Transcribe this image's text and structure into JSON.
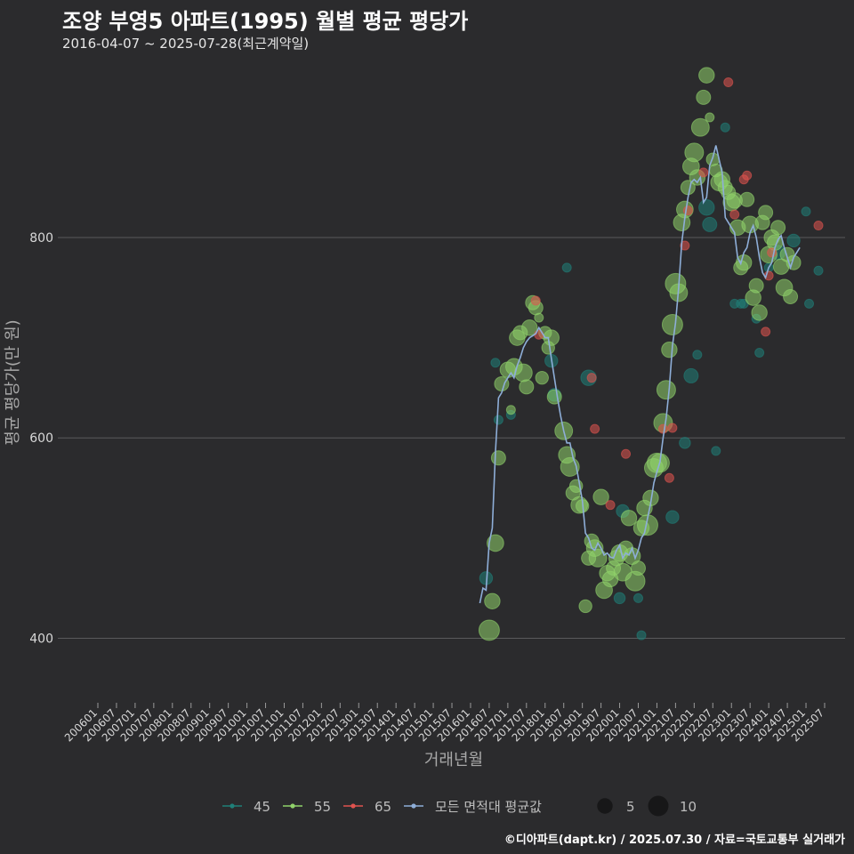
{
  "title": "조양 부영5 아파트(1995) 월별 평균 평당가",
  "subtitle": "2016-04-07 ~ 2025-07-28(최근계약일)",
  "footer": "©디아파트(dapt.kr) / 2025.07.30 / 자료=국토교통부 실거래가",
  "colors": {
    "background": "#2b2b2d",
    "grid": "#5a5a5c",
    "s45": "#1f7f78",
    "s55": "#90d26a",
    "s65": "#e0534f",
    "avg": "#8eaed8"
  },
  "chart_data": {
    "type": "scatter",
    "xlabel": "거래년월",
    "ylabel": "평균 평당가(만 원)",
    "ylim": [
      340,
      975
    ],
    "yticks": [
      400,
      600,
      800
    ],
    "x_range": [
      "2006-01",
      "2025-10"
    ],
    "xticks": [
      "200601",
      "200607",
      "200701",
      "200707",
      "200801",
      "200807",
      "200901",
      "200907",
      "201001",
      "201007",
      "201101",
      "201107",
      "201201",
      "201207",
      "201301",
      "201307",
      "201401",
      "201407",
      "201501",
      "201507",
      "201601",
      "201607",
      "201701",
      "201707",
      "201801",
      "201807",
      "201901",
      "201907",
      "202001",
      "202007",
      "202101",
      "202107",
      "202201",
      "202207",
      "202301",
      "202307",
      "202401",
      "202407",
      "202501",
      "202507"
    ],
    "legend": {
      "position": "bottom",
      "series": [
        {
          "label": "45",
          "color_key": "s45"
        },
        {
          "label": "55",
          "color_key": "s55"
        },
        {
          "label": "65",
          "color_key": "s65"
        },
        {
          "label": "모든 면적대 평균값",
          "color_key": "avg"
        }
      ],
      "sizes": [
        {
          "label": "5",
          "count": 5
        },
        {
          "label": "10",
          "count": 10
        }
      ]
    },
    "series": [
      {
        "name": "45",
        "color_key": "s45",
        "points": [
          [
            "2016-06",
            460,
            3
          ],
          [
            "2016-09",
            675,
            1
          ],
          [
            "2016-10",
            618,
            1
          ],
          [
            "2017-02",
            623,
            1
          ],
          [
            "2018-03",
            677,
            3
          ],
          [
            "2018-04",
            643,
            3
          ],
          [
            "2018-08",
            770,
            1
          ],
          [
            "2019-03",
            660,
            5
          ],
          [
            "2020-01",
            440,
            2
          ],
          [
            "2020-02",
            527,
            3
          ],
          [
            "2020-07",
            440,
            1
          ],
          [
            "2020-08",
            403,
            1
          ],
          [
            "2021-06",
            521,
            3
          ],
          [
            "2021-10",
            595,
            2
          ],
          [
            "2021-12",
            662,
            4
          ],
          [
            "2022-02",
            683,
            1
          ],
          [
            "2022-05",
            830,
            5
          ],
          [
            "2022-06",
            813,
            4
          ],
          [
            "2022-08",
            587,
            1
          ],
          [
            "2022-11",
            910,
            1
          ],
          [
            "2023-02",
            734,
            1
          ],
          [
            "2023-04",
            734,
            1
          ],
          [
            "2023-05",
            734,
            1
          ],
          [
            "2023-09",
            719,
            1
          ],
          [
            "2023-10",
            685,
            1
          ],
          [
            "2024-01",
            770,
            1
          ],
          [
            "2024-04",
            785,
            4
          ],
          [
            "2024-09",
            797,
            3
          ],
          [
            "2025-01",
            826,
            1
          ],
          [
            "2025-02",
            734,
            1
          ],
          [
            "2025-05",
            767,
            1
          ]
        ]
      },
      {
        "name": "55",
        "color_key": "s55",
        "points": [
          [
            "2016-07",
            408,
            10
          ],
          [
            "2016-08",
            437,
            5
          ],
          [
            "2016-09",
            495,
            6
          ],
          [
            "2016-10",
            580,
            4
          ],
          [
            "2016-11",
            654,
            4
          ],
          [
            "2017-01",
            668,
            5
          ],
          [
            "2017-02",
            628,
            1
          ],
          [
            "2017-03",
            671,
            6
          ],
          [
            "2017-04",
            700,
            5
          ],
          [
            "2017-05",
            705,
            4
          ],
          [
            "2017-06",
            665,
            7
          ],
          [
            "2017-07",
            651,
            4
          ],
          [
            "2017-08",
            710,
            5
          ],
          [
            "2017-09",
            735,
            4
          ],
          [
            "2017-10",
            730,
            4
          ],
          [
            "2017-11",
            720,
            1
          ],
          [
            "2017-12",
            660,
            3
          ],
          [
            "2018-01",
            705,
            3
          ],
          [
            "2018-02",
            690,
            3
          ],
          [
            "2018-03",
            700,
            5
          ],
          [
            "2018-04",
            641,
            4
          ],
          [
            "2018-07",
            607,
            7
          ],
          [
            "2018-08",
            583,
            6
          ],
          [
            "2018-09",
            571,
            8
          ],
          [
            "2018-10",
            545,
            4
          ],
          [
            "2018-11",
            552,
            3
          ],
          [
            "2018-12",
            533,
            6
          ],
          [
            "2019-01",
            532,
            3
          ],
          [
            "2019-02",
            432,
            3
          ],
          [
            "2019-03",
            480,
            4
          ],
          [
            "2019-04",
            497,
            4
          ],
          [
            "2019-05",
            490,
            6
          ],
          [
            "2019-06",
            480,
            7
          ],
          [
            "2019-07",
            541,
            5
          ],
          [
            "2019-08",
            448,
            6
          ],
          [
            "2019-09",
            465,
            5
          ],
          [
            "2019-10",
            459,
            5
          ],
          [
            "2019-11",
            470,
            4
          ],
          [
            "2019-12",
            480,
            5
          ],
          [
            "2020-01",
            485,
            6
          ],
          [
            "2020-02",
            466,
            7
          ],
          [
            "2020-03",
            490,
            4
          ],
          [
            "2020-04",
            520,
            5
          ],
          [
            "2020-05",
            482,
            6
          ],
          [
            "2020-06",
            457,
            9
          ],
          [
            "2020-07",
            470,
            4
          ],
          [
            "2020-08",
            510,
            5
          ],
          [
            "2020-09",
            530,
            5
          ],
          [
            "2020-10",
            513,
            10
          ],
          [
            "2020-11",
            540,
            5
          ],
          [
            "2020-12",
            570,
            8
          ],
          [
            "2021-01",
            575,
            9
          ],
          [
            "2021-02",
            575,
            8
          ],
          [
            "2021-03",
            615,
            8
          ],
          [
            "2021-04",
            648,
            8
          ],
          [
            "2021-05",
            688,
            5
          ],
          [
            "2021-06",
            713,
            10
          ],
          [
            "2021-07",
            754,
            10
          ],
          [
            "2021-08",
            745,
            7
          ],
          [
            "2021-09",
            815,
            6
          ],
          [
            "2021-10",
            828,
            6
          ],
          [
            "2021-11",
            850,
            4
          ],
          [
            "2021-12",
            871,
            6
          ],
          [
            "2022-01",
            885,
            8
          ],
          [
            "2022-02",
            860,
            5
          ],
          [
            "2022-03",
            910,
            7
          ],
          [
            "2022-04",
            940,
            4
          ],
          [
            "2022-05",
            962,
            5
          ],
          [
            "2022-06",
            920,
            1
          ],
          [
            "2022-07",
            878,
            3
          ],
          [
            "2022-08",
            867,
            3
          ],
          [
            "2022-09",
            855,
            6
          ],
          [
            "2022-10",
            858,
            5
          ],
          [
            "2022-11",
            850,
            4
          ],
          [
            "2022-12",
            845,
            4
          ],
          [
            "2023-01",
            835,
            6
          ],
          [
            "2023-02",
            837,
            5
          ],
          [
            "2023-03",
            810,
            5
          ],
          [
            "2023-04",
            770,
            4
          ],
          [
            "2023-05",
            775,
            5
          ],
          [
            "2023-06",
            838,
            4
          ],
          [
            "2023-07",
            813,
            6
          ],
          [
            "2023-08",
            740,
            5
          ],
          [
            "2023-09",
            752,
            4
          ],
          [
            "2023-10",
            725,
            5
          ],
          [
            "2023-11",
            815,
            4
          ],
          [
            "2023-12",
            825,
            4
          ],
          [
            "2024-01",
            783,
            6
          ],
          [
            "2024-02",
            800,
            5
          ],
          [
            "2024-03",
            795,
            5
          ],
          [
            "2024-04",
            810,
            4
          ],
          [
            "2024-05",
            771,
            5
          ],
          [
            "2024-06",
            750,
            6
          ],
          [
            "2024-07",
            783,
            4
          ],
          [
            "2024-08",
            741,
            4
          ],
          [
            "2024-09",
            775,
            4
          ]
        ]
      },
      {
        "name": "65",
        "color_key": "s65",
        "points": [
          [
            "2017-10",
            737,
            1
          ],
          [
            "2017-11",
            703,
            1
          ],
          [
            "2019-04",
            660,
            1
          ],
          [
            "2019-05",
            609,
            1
          ],
          [
            "2019-10",
            533,
            1
          ],
          [
            "2020-03",
            584,
            1
          ],
          [
            "2021-03",
            609,
            1
          ],
          [
            "2021-05",
            560,
            1
          ],
          [
            "2021-06",
            610,
            1
          ],
          [
            "2021-10",
            792,
            1
          ],
          [
            "2021-11",
            827,
            1
          ],
          [
            "2022-04",
            865,
            1
          ],
          [
            "2022-12",
            955,
            1
          ],
          [
            "2023-02",
            823,
            1
          ],
          [
            "2023-05",
            858,
            1
          ],
          [
            "2023-06",
            862,
            1
          ],
          [
            "2023-12",
            706,
            1
          ],
          [
            "2024-01",
            762,
            1
          ],
          [
            "2024-02",
            785,
            1
          ],
          [
            "2025-05",
            812,
            1
          ]
        ]
      }
    ],
    "average": [
      [
        "2016-04",
        435
      ],
      [
        "2016-05",
        450
      ],
      [
        "2016-06",
        448
      ],
      [
        "2016-07",
        495
      ],
      [
        "2016-08",
        510
      ],
      [
        "2016-09",
        585
      ],
      [
        "2016-10",
        640
      ],
      [
        "2016-11",
        645
      ],
      [
        "2016-12",
        655
      ],
      [
        "2017-01",
        660
      ],
      [
        "2017-02",
        665
      ],
      [
        "2017-03",
        660
      ],
      [
        "2017-04",
        672
      ],
      [
        "2017-05",
        680
      ],
      [
        "2017-06",
        690
      ],
      [
        "2017-07",
        696
      ],
      [
        "2017-08",
        700
      ],
      [
        "2017-09",
        702
      ],
      [
        "2017-10",
        704
      ],
      [
        "2017-11",
        710
      ],
      [
        "2017-12",
        705
      ],
      [
        "2018-01",
        700
      ],
      [
        "2018-02",
        700
      ],
      [
        "2018-03",
        680
      ],
      [
        "2018-04",
        660
      ],
      [
        "2018-05",
        640
      ],
      [
        "2018-06",
        622
      ],
      [
        "2018-07",
        607
      ],
      [
        "2018-08",
        595
      ],
      [
        "2018-09",
        595
      ],
      [
        "2018-10",
        580
      ],
      [
        "2018-11",
        572
      ],
      [
        "2018-12",
        555
      ],
      [
        "2019-01",
        537
      ],
      [
        "2019-02",
        505
      ],
      [
        "2019-03",
        500
      ],
      [
        "2019-04",
        490
      ],
      [
        "2019-05",
        488
      ],
      [
        "2019-06",
        495
      ],
      [
        "2019-07",
        490
      ],
      [
        "2019-08",
        483
      ],
      [
        "2019-09",
        485
      ],
      [
        "2019-10",
        481
      ],
      [
        "2019-11",
        480
      ],
      [
        "2019-12",
        488
      ],
      [
        "2020-01",
        493
      ],
      [
        "2020-02",
        480
      ],
      [
        "2020-03",
        485
      ],
      [
        "2020-04",
        483
      ],
      [
        "2020-05",
        490
      ],
      [
        "2020-06",
        480
      ],
      [
        "2020-07",
        488
      ],
      [
        "2020-08",
        500
      ],
      [
        "2020-09",
        505
      ],
      [
        "2020-10",
        520
      ],
      [
        "2020-11",
        535
      ],
      [
        "2020-12",
        555
      ],
      [
        "2021-01",
        566
      ],
      [
        "2021-02",
        576
      ],
      [
        "2021-03",
        600
      ],
      [
        "2021-04",
        620
      ],
      [
        "2021-05",
        650
      ],
      [
        "2021-06",
        692
      ],
      [
        "2021-07",
        715
      ],
      [
        "2021-08",
        750
      ],
      [
        "2021-09",
        795
      ],
      [
        "2021-10",
        820
      ],
      [
        "2021-11",
        840
      ],
      [
        "2021-12",
        855
      ],
      [
        "2022-01",
        858
      ],
      [
        "2022-02",
        855
      ],
      [
        "2022-03",
        860
      ],
      [
        "2022-04",
        835
      ],
      [
        "2022-05",
        840
      ],
      [
        "2022-06",
        872
      ],
      [
        "2022-07",
        880
      ],
      [
        "2022-08",
        892
      ],
      [
        "2022-09",
        878
      ],
      [
        "2022-10",
        865
      ],
      [
        "2022-11",
        820
      ],
      [
        "2022-12",
        815
      ],
      [
        "2023-01",
        810
      ],
      [
        "2023-02",
        805
      ],
      [
        "2023-03",
        780
      ],
      [
        "2023-04",
        774
      ],
      [
        "2023-05",
        785
      ],
      [
        "2023-06",
        790
      ],
      [
        "2023-07",
        805
      ],
      [
        "2023-08",
        812
      ],
      [
        "2023-09",
        800
      ],
      [
        "2023-10",
        780
      ],
      [
        "2023-11",
        765
      ],
      [
        "2023-12",
        760
      ],
      [
        "2024-01",
        770
      ],
      [
        "2024-02",
        775
      ],
      [
        "2024-03",
        790
      ],
      [
        "2024-04",
        798
      ],
      [
        "2024-05",
        802
      ],
      [
        "2024-06",
        790
      ],
      [
        "2024-07",
        780
      ],
      [
        "2024-08",
        770
      ],
      [
        "2024-09",
        780
      ],
      [
        "2024-10",
        785
      ],
      [
        "2024-11",
        790
      ]
    ]
  }
}
